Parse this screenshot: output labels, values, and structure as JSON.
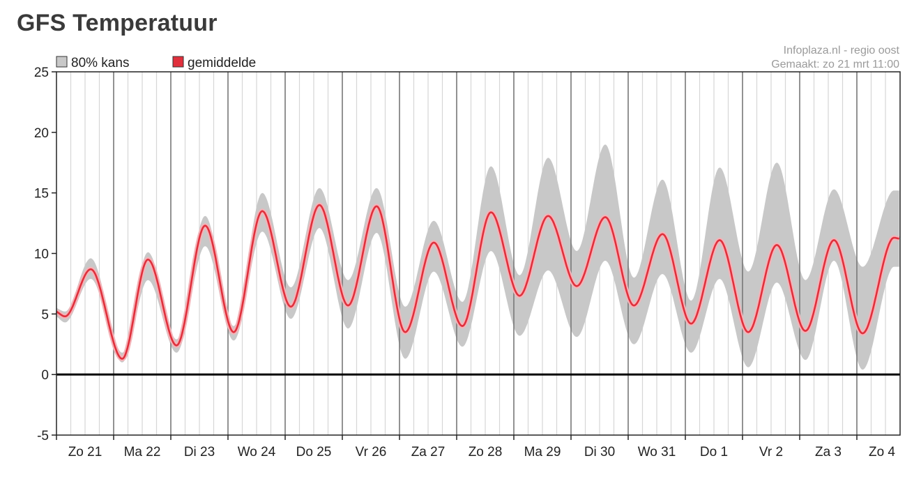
{
  "title": "GFS Temperatuur",
  "source": {
    "line1": "Infoplaza.nl - regio oost",
    "line2": "Gemaakt: zo 21 mrt 11:00"
  },
  "colors": {
    "band": "#c8c8c8",
    "mean": "#e0303c",
    "mean_halo": "#f4b3b8",
    "grid_major": "#777777",
    "grid_minor": "#d6d6d6",
    "zero_line": "#000000"
  },
  "chart_data": {
    "type": "area",
    "title": "GFS Temperatuur",
    "xlabel": "",
    "ylabel": "",
    "ylim": [
      -5,
      25
    ],
    "yticks": [
      25,
      20,
      15,
      10,
      5,
      0,
      -5
    ],
    "xlim": [
      0,
      14.75
    ],
    "x_unit": "days",
    "categories": [
      "Zo 21",
      "Ma 22",
      "Di 23",
      "Wo 24",
      "Do 25",
      "Vr 26",
      "Za 27",
      "Zo 28",
      "Ma 29",
      "Di 30",
      "Wo 31",
      "Do 1",
      "Vr 2",
      "Za 3",
      "Zo 4"
    ],
    "grid": true,
    "legend": {
      "position": "top-left",
      "entries": [
        {
          "label": "80% kans",
          "color": "#c8c8c8"
        },
        {
          "label": "gemiddelde",
          "color": "#e0303c"
        }
      ]
    },
    "series": [
      {
        "name": "gemiddelde",
        "kind": "line",
        "x": [
          0,
          0.15,
          0.6,
          1.15,
          1.6,
          2.1,
          2.6,
          3.1,
          3.6,
          4.1,
          4.6,
          5.1,
          5.6,
          6.1,
          6.6,
          7.1,
          7.6,
          8.1,
          8.6,
          9.1,
          9.6,
          10.1,
          10.6,
          11.1,
          11.6,
          12.1,
          12.6,
          13.1,
          13.6,
          14.1,
          14.65,
          14.75
        ],
        "y": [
          5.2,
          4.8,
          8.7,
          1.3,
          9.5,
          2.4,
          12.3,
          3.5,
          13.5,
          5.6,
          14.0,
          5.7,
          13.9,
          3.5,
          10.9,
          4.0,
          13.4,
          6.5,
          13.1,
          7.3,
          13.0,
          5.7,
          11.6,
          4.2,
          11.1,
          3.5,
          10.7,
          3.6,
          11.1,
          3.4,
          11.3,
          11.2
        ]
      },
      {
        "name": "80% kans",
        "kind": "band",
        "x": [
          0,
          0.15,
          0.6,
          1.15,
          1.6,
          2.1,
          2.6,
          3.1,
          3.6,
          4.1,
          4.6,
          5.1,
          5.6,
          6.1,
          6.6,
          7.1,
          7.6,
          8.1,
          8.6,
          9.1,
          9.6,
          10.1,
          10.6,
          11.1,
          11.6,
          12.1,
          12.6,
          13.1,
          13.6,
          14.1,
          14.65,
          14.75
        ],
        "lower": [
          4.8,
          4.3,
          7.9,
          1.0,
          7.8,
          1.8,
          10.6,
          2.8,
          11.8,
          4.6,
          12.1,
          3.8,
          11.7,
          1.3,
          8.5,
          2.3,
          10.2,
          3.2,
          8.6,
          3.1,
          9.4,
          2.5,
          8.3,
          1.8,
          7.9,
          0.6,
          7.6,
          1.2,
          9.4,
          0.4,
          8.9,
          8.9
        ],
        "upper": [
          5.5,
          5.2,
          9.6,
          1.8,
          10.1,
          2.9,
          13.1,
          4.0,
          15.0,
          7.2,
          15.4,
          7.8,
          15.4,
          5.6,
          12.7,
          6.0,
          17.2,
          8.2,
          17.9,
          10.2,
          19.0,
          8.0,
          16.1,
          6.1,
          17.1,
          8.5,
          17.5,
          7.8,
          15.3,
          8.9,
          15.2,
          15.2
        ]
      }
    ]
  }
}
